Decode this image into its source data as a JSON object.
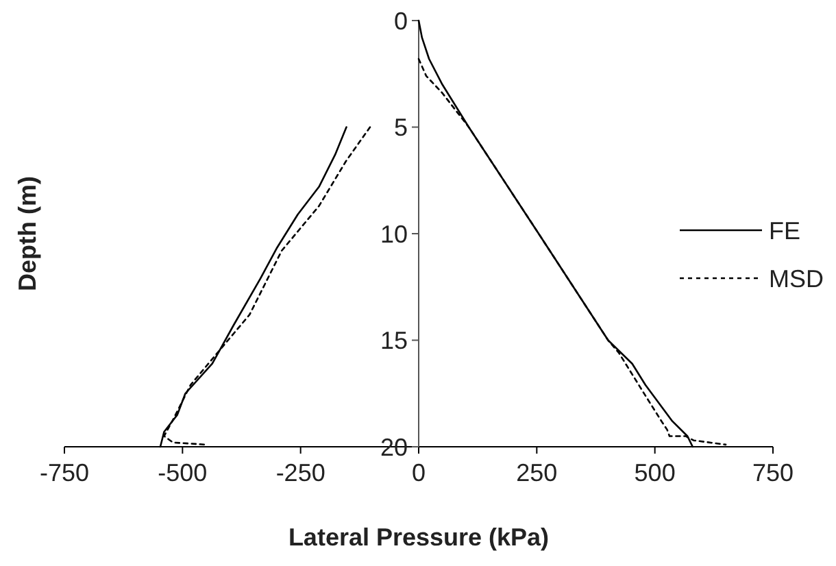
{
  "chart_data": {
    "type": "line",
    "xlabel": "Lateral Pressure (kPa)",
    "ylabel": "Depth (m)",
    "xlim": [
      -750,
      750
    ],
    "xticks": [
      -750,
      -500,
      -250,
      0,
      250,
      500,
      750
    ],
    "ylim": [
      20,
      0
    ],
    "yticks": [
      0,
      5,
      10,
      15,
      20
    ],
    "grid": false,
    "legend": "right",
    "marker": "none",
    "series": [
      {
        "name": "FE",
        "color": "#000000",
        "line_style": "solid",
        "x": [
          0,
          7,
          22,
          50,
          106,
          254,
          401,
          452,
          480,
          537,
          569,
          580,
          0,
          -153,
          -177,
          -211,
          -256,
          -301,
          -335,
          -392,
          -437,
          -494,
          -511,
          -539,
          -547
        ],
        "values": [
          0,
          0.8,
          1.8,
          3,
          5,
          10,
          15,
          16.1,
          17.1,
          18.8,
          19.5,
          20,
          null,
          5,
          6.3,
          7.8,
          9.1,
          10.7,
          12.1,
          14.3,
          16.1,
          17.5,
          18.5,
          19.3,
          20
        ]
      },
      {
        "name": "MSD",
        "color": "#000000",
        "line_style": "dashed",
        "x": [
          0,
          16,
          50,
          106,
          254,
          401,
          424,
          480,
          514,
          526,
          531,
          565,
          582,
          650,
          0,
          -103,
          -154,
          -211,
          -290,
          -358,
          -415,
          -483,
          -517,
          -539,
          -520,
          -450
        ],
        "values": [
          1.8,
          2.6,
          3.4,
          5,
          10,
          15,
          15.6,
          17.6,
          18.8,
          19.2,
          19.5,
          19.5,
          19.7,
          19.9,
          null,
          5,
          6.6,
          8.7,
          10.8,
          13.8,
          15.3,
          17.1,
          18.6,
          19.5,
          19.8,
          19.9
        ]
      }
    ]
  }
}
